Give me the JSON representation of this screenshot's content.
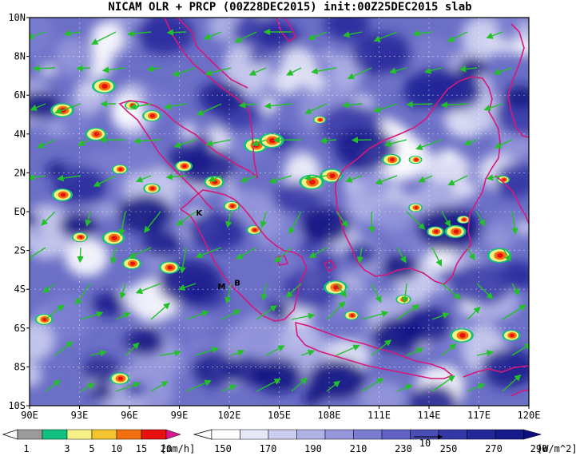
{
  "title": "NICAM OLR + PRCP (00Z28DEC2015) init:00Z25DEC2015 slab",
  "map": {
    "lon_range": [
      90,
      120
    ],
    "lat_range": [
      -10,
      10
    ],
    "x_ticks": [
      "90E",
      "93E",
      "96E",
      "99E",
      "102E",
      "105E",
      "108E",
      "111E",
      "114E",
      "117E",
      "120E"
    ],
    "y_ticks": [
      "10N",
      "8N",
      "6N",
      "4N",
      "2N",
      "EQ",
      "2S",
      "4S",
      "6S",
      "8S",
      "10S"
    ],
    "place_labels": [
      {
        "text": "K",
        "lon": 100.0,
        "lat": -0.2
      },
      {
        "text": "M",
        "lon": 101.3,
        "lat": -4.0
      },
      {
        "text": "B",
        "lon": 102.3,
        "lat": -3.8
      }
    ]
  },
  "colors": {
    "coast": "#d4197a",
    "wind": "#22c12a",
    "olr_dark": "#1d1f84",
    "olr_light": "#f4f5ff"
  },
  "precip_colorbar": {
    "unit": "[mm/h]",
    "labels": [
      "1",
      "3",
      "5",
      "10",
      "15",
      "20"
    ],
    "colors": [
      "#9a9a9a",
      "#10c080",
      "#f6f087",
      "#f6c431",
      "#f07010",
      "#e81010",
      "#d61a8c"
    ]
  },
  "olr_colorbar": {
    "unit": "[W/m^2]",
    "labels": [
      "150",
      "170",
      "190",
      "210",
      "230",
      "250",
      "270",
      "290"
    ],
    "colors": [
      "#ffffff",
      "#e6e7f7",
      "#cbcdee",
      "#b0b2e5",
      "#9597da",
      "#7a7dcf",
      "#6063c3",
      "#4a4db6",
      "#3537a6",
      "#24279a",
      "#16198a",
      "#0d0f7c"
    ],
    "vector_ref": "10"
  }
}
